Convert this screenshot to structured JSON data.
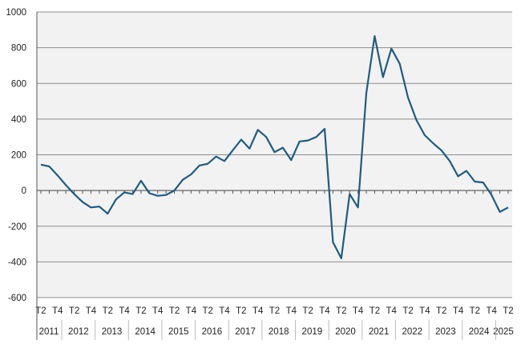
{
  "chart_data": {
    "type": "line",
    "title": "",
    "xlabel": "",
    "ylabel": "",
    "ylim": [
      -600,
      1000
    ],
    "yticks": [
      -600,
      -400,
      -200,
      0,
      200,
      400,
      600,
      800,
      1000
    ],
    "grid": true,
    "legend": "none",
    "colors": {
      "line": "#1f5c80",
      "plot_background": "#f2f2f2",
      "gridline": "#8c8c8c",
      "axis": "#555555"
    },
    "years": [
      "2011",
      "2012",
      "2013",
      "2014",
      "2015",
      "2016",
      "2017",
      "2018",
      "2019",
      "2020",
      "2021",
      "2022",
      "2023",
      "2024",
      "2025"
    ],
    "quarter_labels": [
      "T2",
      "T4"
    ],
    "x": [
      "2011 T2",
      "2011 T3",
      "2011 T4",
      "2012 T1",
      "2012 T2",
      "2012 T3",
      "2012 T4",
      "2013 T1",
      "2013 T2",
      "2013 T3",
      "2013 T4",
      "2014 T1",
      "2014 T2",
      "2014 T3",
      "2014 T4",
      "2015 T1",
      "2015 T2",
      "2015 T3",
      "2015 T4",
      "2016 T1",
      "2016 T2",
      "2016 T3",
      "2016 T4",
      "2017 T1",
      "2017 T2",
      "2017 T3",
      "2017 T4",
      "2018 T1",
      "2018 T2",
      "2018 T3",
      "2018 T4",
      "2019 T1",
      "2019 T2",
      "2019 T3",
      "2019 T4",
      "2020 T1",
      "2020 T2",
      "2020 T3",
      "2020 T4",
      "2021 T1",
      "2021 T2",
      "2021 T3",
      "2021 T4",
      "2022 T1",
      "2022 T2",
      "2022 T3",
      "2022 T4",
      "2023 T1",
      "2023 T2",
      "2023 T3",
      "2023 T4",
      "2024 T1",
      "2024 T2",
      "2024 T3",
      "2024 T4",
      "2025 T1",
      "2025 T2"
    ],
    "series": [
      {
        "values": [
          145,
          135,
          85,
          30,
          -20,
          -65,
          -95,
          -90,
          -130,
          -50,
          -10,
          -20,
          55,
          -15,
          -30,
          -25,
          0,
          60,
          90,
          140,
          150,
          190,
          165,
          225,
          285,
          235,
          340,
          300,
          215,
          240,
          170,
          275,
          280,
          300,
          345,
          -290,
          -380,
          -20,
          -95,
          545,
          865,
          635,
          795,
          710,
          520,
          395,
          310,
          265,
          225,
          165,
          80,
          110,
          50,
          45,
          -25,
          -120,
          -95
        ]
      }
    ]
  }
}
